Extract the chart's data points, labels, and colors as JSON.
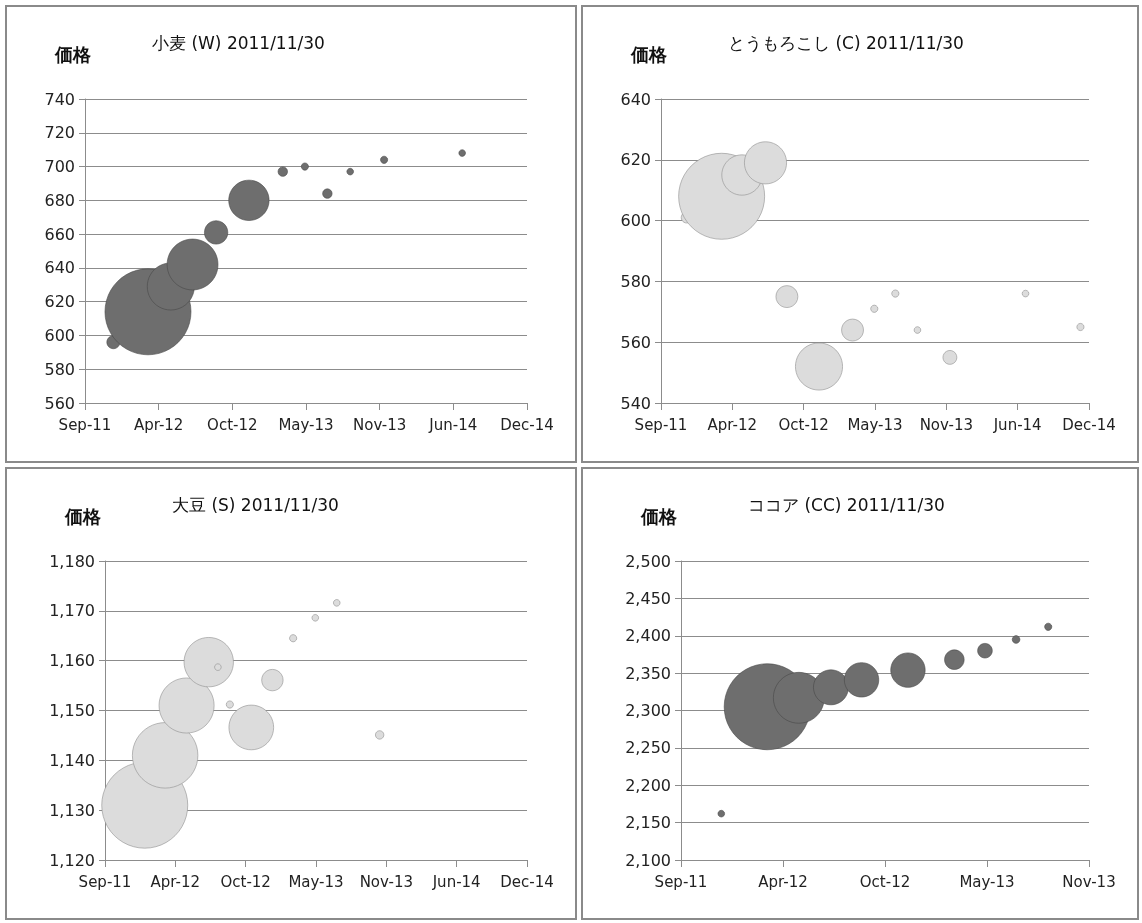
{
  "chart_data": [
    {
      "type": "bubble",
      "title": "小麦 (W) 2011/11/30",
      "ylabel": "価格",
      "grid": "y",
      "color": "#6e6e6e",
      "x": [
        "2011-11-30",
        "2012-03-03",
        "2012-05-04",
        "2012-07-02",
        "2012-09-04",
        "2012-12-02",
        "2013-03-04",
        "2013-05-03",
        "2013-07-03",
        "2013-09-03",
        "2013-12-04",
        "2014-07-04"
      ],
      "values": [
        596,
        614,
        629,
        642,
        661,
        680,
        697,
        700,
        684,
        697,
        704,
        708
      ],
      "sizes": [
        0.023,
        1,
        0.3,
        0.35,
        0.074,
        0.22,
        0.012,
        0.007,
        0.012,
        0.006,
        0.007,
        0.006
      ],
      "xlim": [
        "2011-09-14",
        "2014-12-27"
      ],
      "xticks": [
        {
          "value": "2011-09-14",
          "label": "Sep-11"
        },
        {
          "value": "2012-04-01",
          "label": "Apr-12"
        },
        {
          "value": "2012-10-18",
          "label": "Oct-12"
        },
        {
          "value": "2013-05-06",
          "label": "May-13"
        },
        {
          "value": "2013-11-22",
          "label": "Nov-13"
        },
        {
          "value": "2014-06-10",
          "label": "Jun-14"
        },
        {
          "value": "2014-12-27",
          "label": "Dec-14"
        }
      ],
      "ylim": [
        560,
        740
      ],
      "yticks": [
        560,
        580,
        600,
        620,
        640,
        660,
        680,
        700,
        720,
        740
      ]
    },
    {
      "type": "bubble",
      "title": "とうもろこし (C) 2011/11/30",
      "ylabel": "価格",
      "grid": "y",
      "color": "#dcdcdc",
      "x": [
        "2011-11-25",
        "2012-03-02",
        "2012-04-28",
        "2012-07-03",
        "2012-09-01",
        "2012-11-30",
        "2013-03-04",
        "2013-05-04",
        "2013-07-02",
        "2013-09-02",
        "2013-12-02",
        "2014-07-02",
        "2014-12-03"
      ],
      "values": [
        601,
        608,
        615,
        619,
        575,
        552,
        564,
        571,
        576,
        564,
        555,
        576,
        565
      ],
      "sizes": [
        0.016,
        1,
        0.22,
        0.24,
        0.065,
        0.3,
        0.065,
        0.007,
        0.007,
        0.006,
        0.026,
        0.006,
        0.007
      ],
      "xlim": [
        "2011-09-14",
        "2014-12-27"
      ],
      "xticks": [
        {
          "value": "2011-09-14",
          "label": "Sep-11"
        },
        {
          "value": "2012-04-01",
          "label": "Apr-12"
        },
        {
          "value": "2012-10-18",
          "label": "Oct-12"
        },
        {
          "value": "2013-05-06",
          "label": "May-13"
        },
        {
          "value": "2013-11-22",
          "label": "Nov-13"
        },
        {
          "value": "2014-06-10",
          "label": "Jun-14"
        },
        {
          "value": "2014-12-27",
          "label": "Dec-14"
        }
      ],
      "ylim": [
        540,
        640
      ],
      "yticks": [
        540,
        560,
        580,
        600,
        620,
        640
      ]
    },
    {
      "type": "bubble",
      "title": "大豆 (S) 2011/11/30",
      "ylabel": "価格",
      "grid": "y",
      "color": "#dcdcdc",
      "x": [
        "2012-01-05",
        "2012-03-03",
        "2012-05-03",
        "2012-07-05",
        "2012-07-31",
        "2012-09-03",
        "2012-11-03",
        "2013-01-02",
        "2013-03-02",
        "2013-05-04",
        "2013-07-04",
        "2013-11-03"
      ],
      "values": [
        1131,
        1141,
        1151,
        1159.7,
        1158.7,
        1151.2,
        1146.6,
        1156.1,
        1164.5,
        1168.6,
        1171.6,
        1145.1
      ],
      "sizes": [
        1,
        0.58,
        0.41,
        0.33,
        0.006,
        0.007,
        0.27,
        0.062,
        0.007,
        0.006,
        0.006,
        0.0096
      ],
      "xlim": [
        "2011-09-14",
        "2014-12-27"
      ],
      "xticks": [
        {
          "value": "2011-09-14",
          "label": "Sep-11"
        },
        {
          "value": "2012-04-01",
          "label": "Apr-12"
        },
        {
          "value": "2012-10-18",
          "label": "Oct-12"
        },
        {
          "value": "2013-05-06",
          "label": "May-13"
        },
        {
          "value": "2013-11-22",
          "label": "Nov-13"
        },
        {
          "value": "2014-06-10",
          "label": "Jun-14"
        },
        {
          "value": "2014-12-27",
          "label": "Dec-14"
        }
      ],
      "ylim": [
        1120,
        1180
      ],
      "yticks": [
        {
          "value": 1120,
          "label": "1,120"
        },
        {
          "value": 1130,
          "label": "1,130"
        },
        {
          "value": 1140,
          "label": "1,140"
        },
        {
          "value": 1150,
          "label": "1,150"
        },
        {
          "value": 1160,
          "label": "1,160"
        },
        {
          "value": 1170,
          "label": "1,170"
        },
        {
          "value": 1180,
          "label": "1,180"
        }
      ]
    },
    {
      "type": "bubble",
      "title": "ココア (CC) 2011/11/30",
      "ylabel": "価格",
      "grid": "y",
      "color": "#6e6e6e",
      "x": [
        "2011-12-02",
        "2012-03-01",
        "2012-05-02",
        "2012-07-04",
        "2012-09-02",
        "2012-12-02",
        "2013-03-03",
        "2013-05-02",
        "2013-07-02",
        "2013-09-03"
      ],
      "values": [
        2162,
        2305,
        2317,
        2331,
        2341,
        2354,
        2368,
        2380,
        2395,
        2412
      ],
      "sizes": [
        0.006,
        1,
        0.35,
        0.165,
        0.16,
        0.16,
        0.052,
        0.029,
        0.008,
        0.007
      ],
      "xlim": [
        "2011-09-14",
        "2013-11-22"
      ],
      "xticks": [
        {
          "value": "2011-09-14",
          "label": "Sep-11"
        },
        {
          "value": "2012-04-01",
          "label": "Apr-12"
        },
        {
          "value": "2012-10-18",
          "label": "Oct-12"
        },
        {
          "value": "2013-05-06",
          "label": "May-13"
        },
        {
          "value": "2013-11-22",
          "label": "Nov-13"
        }
      ],
      "ylim": [
        2100,
        2500
      ],
      "yticks": [
        {
          "value": 2100,
          "label": "2,100"
        },
        {
          "value": 2150,
          "label": "2,150"
        },
        {
          "value": 2200,
          "label": "2,200"
        },
        {
          "value": 2250,
          "label": "2,250"
        },
        {
          "value": 2300,
          "label": "2,300"
        },
        {
          "value": 2350,
          "label": "2,350"
        },
        {
          "value": 2400,
          "label": "2,400"
        },
        {
          "value": 2450,
          "label": "2,450"
        },
        {
          "value": 2500,
          "label": "2,500"
        }
      ]
    }
  ]
}
